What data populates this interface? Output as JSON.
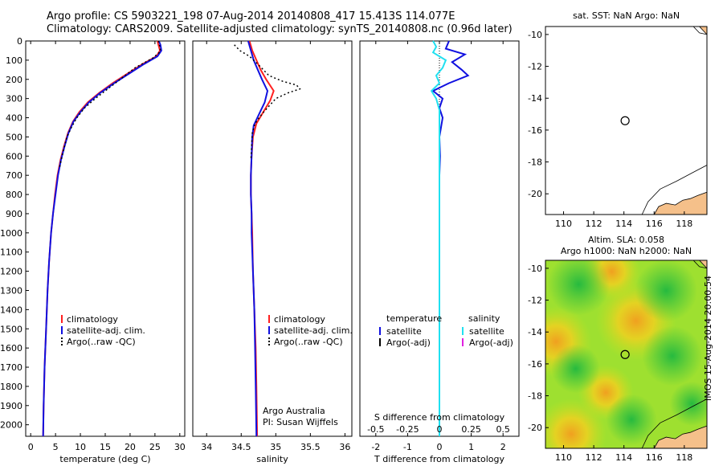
{
  "header": {
    "line1": "Argo profile: CS 5903221_198 07-Aug-2014 20140808_417 15.413S 114.077E",
    "line2": "Climatology: CARS2009. Satellite-adjusted climatology: synTS_20140808.nc (0.96d later)"
  },
  "colors": {
    "clim": "#ff2020",
    "sat": "#1010e0",
    "argo": "#000000",
    "sat_sal": "#20e0f0",
    "argo_sal": "#e020e0",
    "land": "#f5c08a"
  },
  "chart_data": [
    {
      "type": "line",
      "id": "temperature",
      "xlabel": "temperature (deg C)",
      "ylabel": "",
      "xlim": [
        -1,
        31
      ],
      "ylim": [
        2060,
        0
      ],
      "xticks": [
        "0",
        "5",
        "10",
        "15",
        "20",
        "25",
        "30"
      ],
      "xtick_values": [
        0,
        5,
        10,
        15,
        20,
        25,
        30
      ],
      "yticks": [
        "0",
        "100",
        "200",
        "300",
        "400",
        "500",
        "600",
        "700",
        "800",
        "900",
        "1000",
        "1100",
        "1200",
        "1300",
        "1400",
        "1500",
        "1600",
        "1700",
        "1800",
        "1900",
        "2000"
      ],
      "ytick_values": [
        0,
        100,
        200,
        300,
        400,
        500,
        600,
        700,
        800,
        900,
        1000,
        1100,
        1200,
        1300,
        1400,
        1500,
        1600,
        1700,
        1800,
        1900,
        2000
      ],
      "legend": [
        "climatology",
        "satellite-adj. clim.",
        "Argo(..raw -QC)"
      ],
      "series": [
        {
          "name": "climatology",
          "style": "clim",
          "points": [
            [
              25.5,
              0
            ],
            [
              25.7,
              20
            ],
            [
              26.0,
              50
            ],
            [
              25.3,
              80
            ],
            [
              22.5,
              120
            ],
            [
              19.5,
              170
            ],
            [
              16.5,
              220
            ],
            [
              13.8,
              270
            ],
            [
              11.5,
              320
            ],
            [
              9.8,
              370
            ],
            [
              8.5,
              420
            ],
            [
              7.5,
              480
            ],
            [
              6.7,
              550
            ],
            [
              6.0,
              620
            ],
            [
              5.4,
              700
            ],
            [
              4.9,
              800
            ],
            [
              4.5,
              900
            ],
            [
              4.1,
              1000
            ],
            [
              3.7,
              1150
            ],
            [
              3.4,
              1300
            ],
            [
              3.1,
              1500
            ],
            [
              2.8,
              1700
            ],
            [
              2.6,
              1900
            ],
            [
              2.5,
              2060
            ]
          ]
        },
        {
          "name": "satellite-adj. clim.",
          "style": "sat",
          "points": [
            [
              25.8,
              0
            ],
            [
              26.1,
              20
            ],
            [
              26.3,
              50
            ],
            [
              25.5,
              80
            ],
            [
              22.8,
              120
            ],
            [
              19.8,
              170
            ],
            [
              16.8,
              220
            ],
            [
              14.0,
              270
            ],
            [
              11.7,
              320
            ],
            [
              10.0,
              370
            ],
            [
              8.6,
              420
            ],
            [
              7.6,
              480
            ],
            [
              6.8,
              550
            ],
            [
              6.1,
              620
            ],
            [
              5.5,
              700
            ],
            [
              5.0,
              800
            ],
            [
              4.5,
              900
            ],
            [
              4.1,
              1000
            ],
            [
              3.7,
              1150
            ],
            [
              3.4,
              1300
            ],
            [
              3.1,
              1500
            ],
            [
              2.8,
              1700
            ],
            [
              2.6,
              1900
            ],
            [
              2.5,
              2060
            ]
          ]
        },
        {
          "name": "Argo(..raw -QC)",
          "style": "argo",
          "points": [
            [
              25.7,
              0
            ],
            [
              26.0,
              30
            ],
            [
              26.1,
              55
            ],
            [
              24.5,
              90
            ],
            [
              21.0,
              140
            ],
            [
              18.0,
              200
            ],
            [
              15.5,
              250
            ],
            [
              13.0,
              300
            ],
            [
              10.8,
              350
            ],
            [
              9.3,
              400
            ],
            [
              8.2,
              450
            ],
            [
              7.3,
              500
            ],
            [
              6.5,
              580
            ],
            [
              5.8,
              660
            ]
          ]
        }
      ]
    },
    {
      "type": "line",
      "id": "salinity",
      "xlabel": "salinity",
      "xlim": [
        33.8,
        36.1
      ],
      "ylim": [
        2060,
        0
      ],
      "xticks": [
        "34",
        "34.5",
        "35",
        "35.5",
        "36"
      ],
      "xtick_values": [
        34,
        34.5,
        35,
        35.5,
        36
      ],
      "legend": [
        "climatology",
        "satellite-adj. clim.",
        "Argo(..raw -QC)"
      ],
      "annotation": [
        "Argo Australia",
        "PI: Susan Wijffels"
      ],
      "series": [
        {
          "name": "climatology",
          "style": "clim",
          "points": [
            [
              34.62,
              0
            ],
            [
              34.66,
              50
            ],
            [
              34.72,
              100
            ],
            [
              34.78,
              150
            ],
            [
              34.86,
              200
            ],
            [
              34.97,
              260
            ],
            [
              34.92,
              310
            ],
            [
              34.82,
              370
            ],
            [
              34.72,
              430
            ],
            [
              34.67,
              500
            ],
            [
              34.65,
              600
            ],
            [
              34.64,
              700
            ],
            [
              34.64,
              800
            ],
            [
              34.65,
              900
            ],
            [
              34.66,
              1000
            ],
            [
              34.67,
              1200
            ],
            [
              34.69,
              1400
            ],
            [
              34.71,
              1600
            ],
            [
              34.72,
              1800
            ],
            [
              34.73,
              2060
            ]
          ]
        },
        {
          "name": "satellite-adj. clim.",
          "style": "sat",
          "points": [
            [
              34.6,
              0
            ],
            [
              34.64,
              50
            ],
            [
              34.68,
              100
            ],
            [
              34.74,
              150
            ],
            [
              34.8,
              200
            ],
            [
              34.88,
              260
            ],
            [
              34.84,
              320
            ],
            [
              34.76,
              380
            ],
            [
              34.68,
              440
            ],
            [
              34.66,
              500
            ],
            [
              34.65,
              600
            ],
            [
              34.64,
              700
            ],
            [
              34.64,
              800
            ],
            [
              34.65,
              900
            ],
            [
              34.65,
              1000
            ],
            [
              34.67,
              1200
            ],
            [
              34.69,
              1400
            ],
            [
              34.7,
              1600
            ],
            [
              34.71,
              1800
            ],
            [
              34.72,
              2060
            ]
          ]
        },
        {
          "name": "Argo(..raw -QC)",
          "style": "argo",
          "points": [
            [
              34.4,
              20
            ],
            [
              34.48,
              50
            ],
            [
              34.62,
              80
            ],
            [
              34.74,
              120
            ],
            [
              34.9,
              180
            ],
            [
              35.1,
              210
            ],
            [
              35.3,
              230
            ],
            [
              35.35,
              250
            ],
            [
              35.18,
              270
            ],
            [
              35.0,
              300
            ],
            [
              34.9,
              340
            ],
            [
              34.8,
              380
            ],
            [
              34.7,
              430
            ],
            [
              34.66,
              480
            ],
            [
              34.65,
              550
            ],
            [
              34.64,
              620
            ]
          ]
        }
      ]
    },
    {
      "type": "line",
      "id": "difference",
      "xlabel": "T difference from climatology",
      "xlim": [
        -2.5,
        2.5
      ],
      "ylim": [
        2060,
        0
      ],
      "xticks": [
        "-2",
        "-1",
        "0",
        "1",
        "2"
      ],
      "xtick_values": [
        -2,
        -1,
        0,
        1,
        2
      ],
      "top_axis_label": "S difference from climatology",
      "top_xticks": [
        "-0.5",
        "-0.25",
        "0",
        "0.25",
        "0.5"
      ],
      "top_tick_values": [
        -2,
        -1,
        0,
        1,
        2
      ],
      "legend_titles": [
        "temperature",
        "salinity"
      ],
      "legend": [
        "satellite",
        "Argo(-adj)",
        "satellite",
        "Argo(-adj)"
      ],
      "series": [
        {
          "name": "temperature satellite",
          "style": "sat",
          "points": [
            [
              0.3,
              0
            ],
            [
              0.2,
              40
            ],
            [
              0.8,
              70
            ],
            [
              0.4,
              110
            ],
            [
              0.7,
              150
            ],
            [
              0.9,
              180
            ],
            [
              0.3,
              220
            ],
            [
              -0.2,
              260
            ],
            [
              0.1,
              300
            ],
            [
              0.0,
              350
            ],
            [
              0.1,
              400
            ],
            [
              0.05,
              450
            ],
            [
              0.0,
              500
            ],
            [
              0.02,
              600
            ],
            [
              0.0,
              700
            ],
            [
              0.0,
              1000
            ],
            [
              0.0,
              1500
            ],
            [
              0.0,
              2060
            ]
          ]
        },
        {
          "name": "salinity satellite",
          "style": "sat_sal",
          "points": [
            [
              -0.2,
              0
            ],
            [
              -0.1,
              30
            ],
            [
              -0.2,
              60
            ],
            [
              0.2,
              100
            ],
            [
              0.1,
              140
            ],
            [
              -0.1,
              180
            ],
            [
              0.0,
              220
            ],
            [
              -0.25,
              260
            ],
            [
              -0.1,
              300
            ],
            [
              0.0,
              360
            ],
            [
              0.0,
              420
            ],
            [
              0.0,
              500
            ],
            [
              0.0,
              700
            ],
            [
              0.0,
              1000
            ],
            [
              0.0,
              2060
            ]
          ]
        }
      ]
    },
    {
      "type": "map",
      "id": "sst-map",
      "title": "sat. SST: NaN Argo: NaN",
      "xlim": [
        108.8,
        119.5
      ],
      "ylim": [
        -21.3,
        -9.5
      ],
      "xticks": [
        "110",
        "112",
        "114",
        "116",
        "118"
      ],
      "xtick_values": [
        110,
        112,
        114,
        116,
        118
      ],
      "yticks": [
        "-10",
        "-12",
        "-14",
        "-16",
        "-18",
        "-20"
      ],
      "ytick_values": [
        -10,
        -12,
        -14,
        -16,
        -18,
        -20
      ],
      "marker": {
        "lon": 114.077,
        "lat": -15.413
      }
    },
    {
      "type": "heatmap",
      "id": "sla-map",
      "title": "Altim. SLA: 0.058",
      "subtitle": "Argo h1000: NaN h2000: NaN",
      "xlim": [
        108.8,
        119.5
      ],
      "ylim": [
        -21.3,
        -9.5
      ],
      "xticks": [
        "110",
        "112",
        "114",
        "116",
        "118"
      ],
      "xtick_values": [
        110,
        112,
        114,
        116,
        118
      ],
      "yticks": [
        "-10",
        "-12",
        "-14",
        "-16",
        "-18",
        "-20"
      ],
      "ytick_values": [
        -10,
        -12,
        -14,
        -16,
        -18,
        -20
      ],
      "marker": {
        "lon": 114.077,
        "lat": -15.413
      },
      "anomaly_centres": [
        {
          "lon": 114.8,
          "lat": -13.3,
          "value": 1.0
        },
        {
          "lon": 109.5,
          "lat": -14.6,
          "value": 0.8
        },
        {
          "lon": 110.5,
          "lat": -20.4,
          "value": 0.8
        },
        {
          "lon": 113.2,
          "lat": -10.2,
          "value": 0.5
        },
        {
          "lon": 112.8,
          "lat": -17.8,
          "value": 0.45
        },
        {
          "lon": 111.0,
          "lat": -11.0,
          "value": -0.6
        },
        {
          "lon": 116.8,
          "lat": -11.4,
          "value": -0.6
        },
        {
          "lon": 117.2,
          "lat": -15.5,
          "value": -0.55
        },
        {
          "lon": 110.8,
          "lat": -16.3,
          "value": -0.3
        },
        {
          "lon": 114.5,
          "lat": -19.5,
          "value": -0.35
        },
        {
          "lon": 118.5,
          "lat": -18.5,
          "value": -0.2
        }
      ]
    }
  ],
  "coast": [
    [
      116.0,
      -21.3
    ],
    [
      116.3,
      -20.8
    ],
    [
      116.8,
      -20.6
    ],
    [
      117.4,
      -20.7
    ],
    [
      117.9,
      -20.4
    ],
    [
      118.4,
      -20.3
    ],
    [
      118.9,
      -20.1
    ],
    [
      119.5,
      -19.9
    ]
  ],
  "coast_lines": [
    [
      [
        115.2,
        -21.3
      ],
      [
        115.6,
        -20.5
      ],
      [
        116.4,
        -19.7
      ],
      [
        117.5,
        -19.2
      ],
      [
        118.5,
        -18.7
      ],
      [
        119.5,
        -18.2
      ]
    ],
    [
      [
        118.6,
        -9.5
      ],
      [
        119.0,
        -9.9
      ],
      [
        119.5,
        -10.0
      ]
    ]
  ],
  "stamp": "IMOS 15-Aug-2014 20:00:54"
}
